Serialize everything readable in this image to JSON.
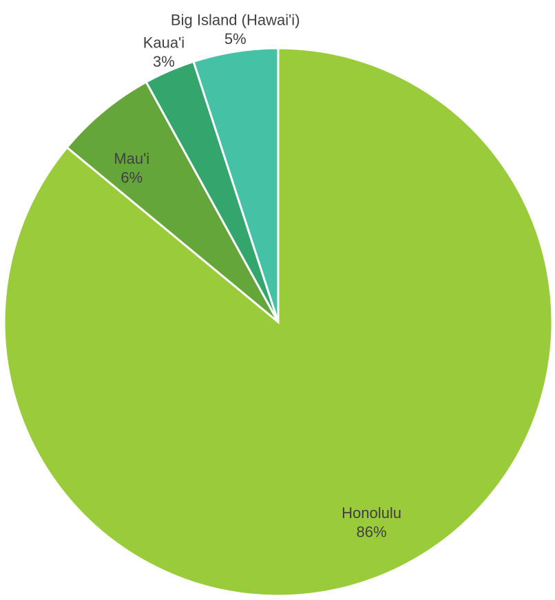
{
  "chart_data": {
    "type": "pie",
    "title": "",
    "start_angle": 0,
    "direction": "clockwise",
    "categories": [
      "Honolulu",
      "Mau'i",
      "Kaua'i",
      "Big Island (Hawai'i)"
    ],
    "values": [
      86,
      6,
      3,
      5
    ],
    "labels": [
      "86%",
      "6%",
      "3%",
      "5%"
    ],
    "colors": [
      "#9ACB3B",
      "#64A63A",
      "#33A56D",
      "#45C2A6"
    ],
    "legend": "none"
  }
}
